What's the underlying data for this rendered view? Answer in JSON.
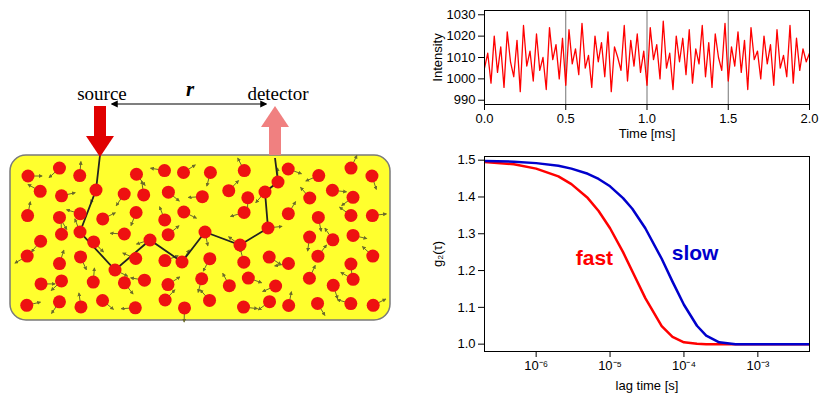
{
  "diagram": {
    "source": "source",
    "detector": "detector",
    "distance_label": "r"
  },
  "chart_data": [
    {
      "type": "line",
      "x_label": "Time [ms]",
      "y_label": "Intensity",
      "color": "#ff0000",
      "grid": "x",
      "x": [
        0,
        0.02,
        0.04,
        0.06,
        0.08,
        0.1,
        0.12,
        0.14,
        0.16,
        0.18,
        0.2,
        0.22,
        0.24,
        0.26,
        0.28,
        0.3,
        0.32,
        0.34,
        0.36,
        0.38,
        0.4,
        0.42,
        0.44,
        0.46,
        0.48,
        0.5,
        0.52,
        0.54,
        0.56,
        0.58,
        0.6,
        0.62,
        0.64,
        0.66,
        0.68,
        0.7,
        0.72,
        0.74,
        0.76,
        0.78,
        0.8,
        0.82,
        0.84,
        0.86,
        0.88,
        0.9,
        0.92,
        0.94,
        0.96,
        0.98,
        1,
        1.02,
        1.04,
        1.06,
        1.08,
        1.1,
        1.12,
        1.14,
        1.16,
        1.18,
        1.2,
        1.22,
        1.24,
        1.26,
        1.28,
        1.3,
        1.32,
        1.34,
        1.36,
        1.38,
        1.4,
        1.42,
        1.44,
        1.46,
        1.48,
        1.5,
        1.52,
        1.54,
        1.56,
        1.58,
        1.6,
        1.62,
        1.64,
        1.66,
        1.68,
        1.7,
        1.72,
        1.74,
        1.76,
        1.78,
        1.8,
        1.82,
        1.84,
        1.86,
        1.88,
        1.9,
        1.92,
        1.94,
        1.96,
        1.98,
        2
      ],
      "values": [
        1005,
        1012,
        998,
        1020,
        1003,
        1015,
        996,
        1022,
        1008,
        1001,
        1018,
        994,
        1025,
        1006,
        1013,
        999,
        1021,
        1004,
        1010,
        995,
        1024,
        1009,
        1016,
        1000,
        1019,
        997,
        1023,
        1007,
        1014,
        1002,
        1026,
        1005,
        1011,
        996,
        1020,
        1008,
        1017,
        1001,
        1022,
        994,
        1015,
        1010,
        1004,
        1025,
        999,
        1018,
        1006,
        1021,
        1003,
        1013,
        997,
        1024,
        1009,
        1016,
        1000,
        1027,
        1005,
        1012,
        995,
        1020,
        1008,
        1019,
        1002,
        1023,
        998,
        1014,
        1007,
        1025,
        1001,
        1017,
        996,
        1021,
        1010,
        1004,
        1026,
        999,
        1015,
        1006,
        1022,
        1003,
        1018,
        995,
        1024,
        1009,
        1013,
        1000,
        1020,
        1007,
        1016,
        997,
        1023,
        1005,
        1011,
        1001,
        1025,
        998,
        1019,
        1004,
        1014,
        1008,
        1012
      ],
      "xlim": [
        0,
        2
      ],
      "xticks": [
        {
          "value": 0,
          "label": "0.0"
        },
        {
          "value": 0.5,
          "label": "0.5"
        },
        {
          "value": 1,
          "label": "1.0"
        },
        {
          "value": 1.5,
          "label": "1.5"
        },
        {
          "value": 2,
          "label": "2.0"
        }
      ],
      "ylim": [
        988,
        1032
      ],
      "yticks": [
        990,
        1000,
        1010,
        1020,
        1030
      ]
    },
    {
      "type": "line",
      "x_label": "lag time [s]",
      "y_label": "g₂(τ)",
      "log": "x",
      "x": [
        2e-07,
        5e-07,
        1e-06,
        2e-06,
        3e-06,
        5e-06,
        7e-06,
        1e-05,
        1.5e-05,
        2e-05,
        3e-05,
        5e-05,
        7e-05,
        0.0001,
        0.00015,
        0.0002,
        0.0003,
        0.0005,
        0.001,
        0.005
      ],
      "series": [
        {
          "name": "fast",
          "color": "#ff0000",
          "values": [
            1.495,
            1.489,
            1.477,
            1.456,
            1.435,
            1.397,
            1.362,
            1.315,
            1.25,
            1.198,
            1.125,
            1.049,
            1.02,
            1.005,
            1.001,
            1.0,
            1.0,
            1.0,
            1.0,
            1.0
          ]
        },
        {
          "name": "slow",
          "color": "#0000cc",
          "values": [
            1.498,
            1.496,
            1.492,
            1.485,
            1.477,
            1.463,
            1.449,
            1.429,
            1.397,
            1.368,
            1.315,
            1.232,
            1.17,
            1.107,
            1.05,
            1.023,
            1.005,
            1.0,
            1.0,
            1.0
          ]
        }
      ],
      "xlim": [
        2e-07,
        0.005
      ],
      "xticks": [
        {
          "value": 1e-06,
          "label": "10⁻⁶"
        },
        {
          "value": 1e-05,
          "label": "10⁻⁵"
        },
        {
          "value": 0.0001,
          "label": "10⁻⁴"
        },
        {
          "value": 0.001,
          "label": "10⁻³"
        }
      ],
      "ylim": [
        0.98,
        1.51
      ],
      "yticks": [
        {
          "value": 1,
          "label": "1.0"
        },
        1.1,
        1.2,
        1.3,
        1.4,
        1.5
      ]
    }
  ]
}
